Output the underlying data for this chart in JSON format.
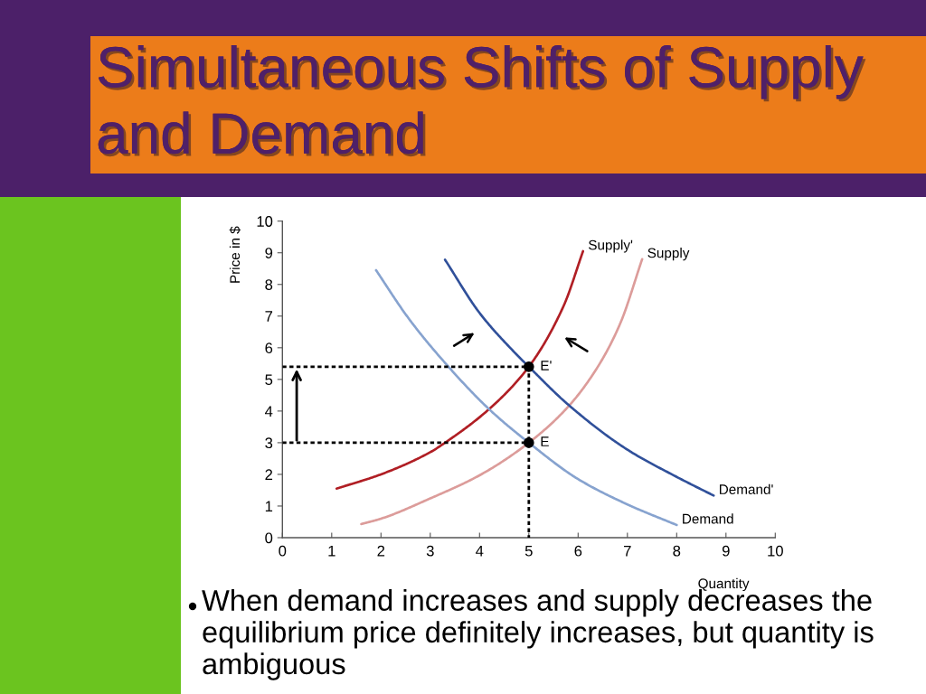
{
  "chart_data": {
    "type": "line",
    "title": "Simultaneous Shifts of Supply and Demand",
    "xlabel": "Quantity",
    "ylabel": "Price in $",
    "xlim": [
      0,
      10
    ],
    "ylim": [
      0,
      10
    ],
    "xticks": [
      0,
      1,
      2,
      3,
      4,
      5,
      6,
      7,
      8,
      9,
      10
    ],
    "yticks": [
      0,
      1,
      2,
      3,
      4,
      5,
      6,
      7,
      8,
      9,
      10
    ],
    "series": [
      {
        "name": "Supply'",
        "color": "#b01e24",
        "line_style": "solid",
        "x": [
          1.1,
          2.0,
          3.0,
          3.3,
          4.2,
          5.0,
          5.7,
          6.1
        ],
        "values": [
          1.55,
          2.0,
          2.7,
          3.0,
          4.07,
          5.4,
          7.3,
          9.05
        ]
      },
      {
        "name": "Supply",
        "color": "#dc9c9a",
        "line_style": "solid",
        "x": [
          1.6,
          2.0,
          3.0,
          4.0,
          5.0,
          5.8,
          6.4,
          6.85,
          7.3
        ],
        "values": [
          0.43,
          0.6,
          1.24,
          1.97,
          3.0,
          4.14,
          5.4,
          6.75,
          8.8
        ]
      },
      {
        "name": "Demand",
        "color": "#87a3cf",
        "line_style": "solid",
        "x": [
          1.9,
          2.55,
          3.2,
          4.2,
          5.0,
          6.0,
          7.0,
          8.0
        ],
        "values": [
          8.45,
          6.95,
          5.7,
          4.05,
          3.0,
          1.85,
          1.05,
          0.4
        ]
      },
      {
        "name": "Demand'",
        "color": "#30509a",
        "line_style": "solid",
        "x": [
          3.3,
          4.0,
          4.73,
          5.0,
          5.8,
          7.0,
          8.0,
          8.75
        ],
        "values": [
          8.78,
          7.1,
          5.82,
          5.4,
          4.2,
          2.78,
          1.92,
          1.33
        ]
      },
      {
        "color": "#000000",
        "line_style": "dashed",
        "x": [
          0,
          5,
          5
        ],
        "values": [
          5.4,
          5.4,
          0
        ]
      },
      {
        "color": "#000000",
        "line_style": "dashed",
        "x": [
          0,
          5
        ],
        "values": [
          3.0,
          3.0
        ]
      },
      {
        "type": "scatter",
        "color": "#000000",
        "marker": "circle",
        "x": [
          5,
          5
        ],
        "values": [
          3.0,
          5.4
        ]
      }
    ],
    "annotations": [
      {
        "text": "E",
        "x": 5,
        "y": 3.0
      },
      {
        "text": "E'",
        "x": 5,
        "y": 5.4
      },
      "When demand increases and supply decreases the equilibrium price definitely increases, but quantity is ambiguous"
    ]
  }
}
